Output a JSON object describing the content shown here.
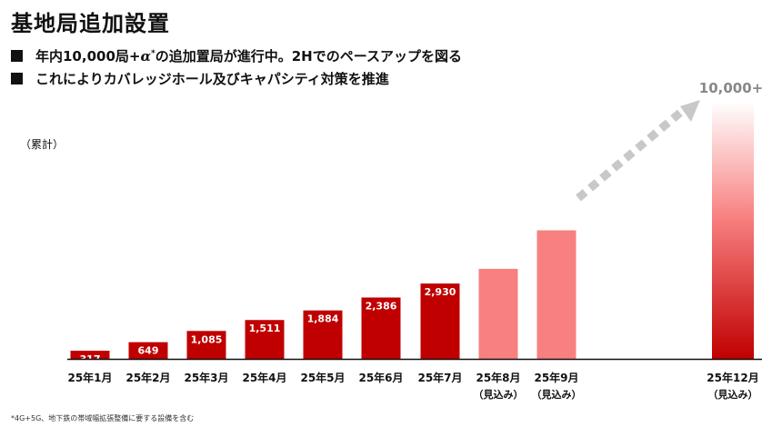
{
  "title": "基地局追加設置",
  "bullets": {
    "b1_pre": "年内10,000局+",
    "b1_alpha": "α",
    "b1_sup": "*",
    "b1_post": "の追加置局が進行中。2Hでのペースアップを図る",
    "b2": "これによりカバレッジホール及びキャパシティ対策を推進"
  },
  "unit_label": "（累計）",
  "footnote": "*4G+5G、地下鉄の帯域幅拡張整備に要する設備を含む",
  "colors": {
    "actual": "#c00000",
    "forecast": "#f88080",
    "gradient_top": "#ffffff",
    "arrow": "#c8c8c8",
    "badge_text": "#888888"
  },
  "chart_data": {
    "type": "bar",
    "title": "基地局追加設置",
    "ylabel": "（累計）",
    "ylim": [
      0,
      10000
    ],
    "categories": [
      "25年1月",
      "25年2月",
      "25年3月",
      "25年4月",
      "25年5月",
      "25年6月",
      "25年7月",
      "25年8月",
      "25年9月",
      "25年12月"
    ],
    "category_notes": [
      "",
      "",
      "",
      "",
      "",
      "",
      "",
      "（見込み）",
      "（見込み）",
      "（見込み）"
    ],
    "values": [
      317,
      649,
      1085,
      1511,
      1884,
      2386,
      2930,
      3500,
      5000,
      10000
    ],
    "value_labels": [
      "317",
      "649",
      "1,085",
      "1,511",
      "1,884",
      "2,386",
      "2,930",
      "",
      "",
      ""
    ],
    "status": [
      "actual",
      "actual",
      "actual",
      "actual",
      "actual",
      "actual",
      "actual",
      "forecast",
      "forecast",
      "target"
    ],
    "annotation": "10,000+"
  }
}
